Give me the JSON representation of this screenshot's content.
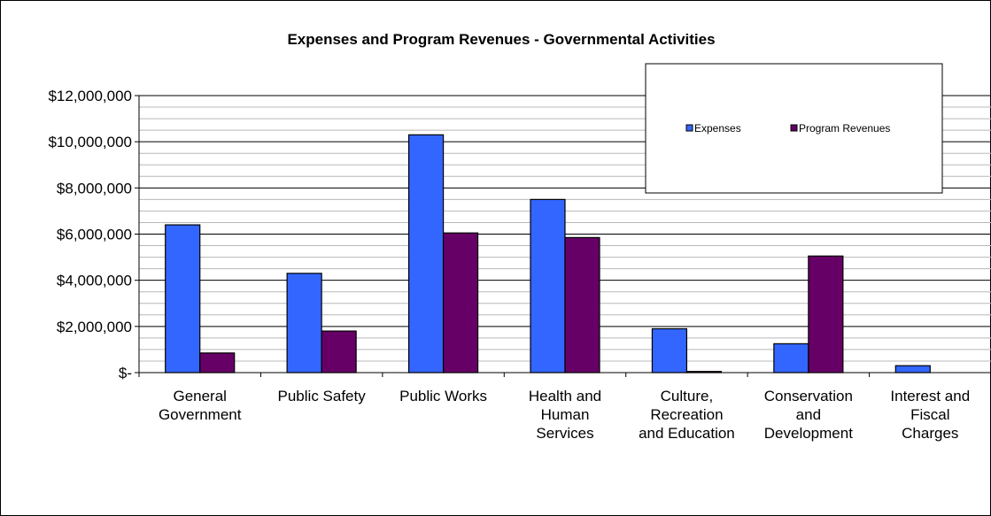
{
  "chart_data": {
    "type": "bar",
    "title": "Expenses and Program Revenues - Governmental Activities",
    "xlabel": "",
    "ylabel": "",
    "ylim": [
      0,
      12000000
    ],
    "y_ticks": [
      {
        "value": 0,
        "label": "$-"
      },
      {
        "value": 2000000,
        "label": "$2,000,000"
      },
      {
        "value": 4000000,
        "label": "$4,000,000"
      },
      {
        "value": 6000000,
        "label": "$6,000,000"
      },
      {
        "value": 8000000,
        "label": "$8,000,000"
      },
      {
        "value": 10000000,
        "label": "$10,000,000"
      },
      {
        "value": 12000000,
        "label": "$12,000,000"
      }
    ],
    "categories": [
      [
        "General",
        "Government"
      ],
      [
        "Public Safety"
      ],
      [
        "Public Works"
      ],
      [
        "Health and",
        "Human",
        "Services"
      ],
      [
        "Culture,",
        "Recreation",
        "and Education"
      ],
      [
        "Conservation",
        "and",
        "Development"
      ],
      [
        "Interest and",
        "Fiscal",
        "Charges"
      ]
    ],
    "series": [
      {
        "name": "Expenses",
        "color": "#3366FF",
        "values": [
          6400000,
          4300000,
          10300000,
          7500000,
          1900000,
          1250000,
          300000
        ]
      },
      {
        "name": "Program Revenues",
        "color": "#660066",
        "values": [
          850000,
          1800000,
          6050000,
          5850000,
          50000,
          5050000,
          0
        ]
      }
    ],
    "grid": true,
    "legend_position": "top-right"
  }
}
